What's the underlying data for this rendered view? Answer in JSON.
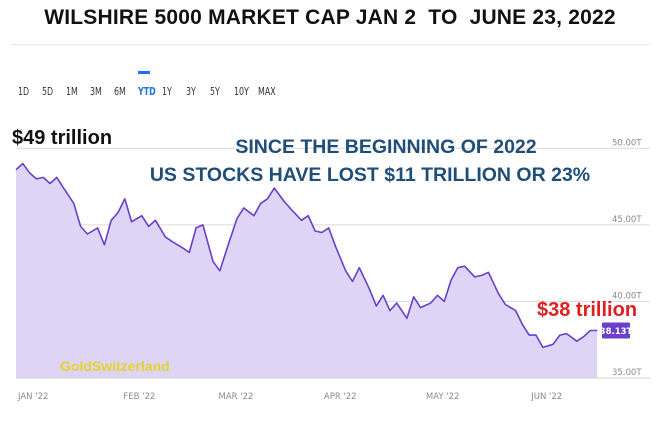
{
  "title": "WILSHIRE 5000 MARKET CAP JAN 2  TO  JUNE 23, 2022",
  "range_buttons": [
    "1D",
    "5D",
    "1M",
    "3M",
    "6M",
    "YTD",
    "1Y",
    "3Y",
    "5Y",
    "10Y",
    "MAX"
  ],
  "active_range": "YTD",
  "annotations": {
    "start_label": "$49 trillion",
    "end_label": "$38 trillion",
    "headline_line1": "SINCE THE BEGINNING OF 2022",
    "headline_line2": "US STOCKS HAVE LOST $11 TRILLION OR 23%",
    "watermark": "GoldSwitzerland"
  },
  "colors": {
    "line": "#6a3fc9",
    "fill": "#ddd4f6",
    "headline": "#1f4e79",
    "end_label": "#e02020",
    "watermark": "#e6d22a",
    "badge": "#6a3fc9"
  },
  "chart_data": {
    "type": "area",
    "title": "WILSHIRE 5000 MARKET CAP JAN 2  TO  JUNE 23, 2022",
    "x_tick_labels": [
      "JAN '22",
      "FEB '22",
      "MAR '22",
      "APR '22",
      "MAY '22",
      "JUN '22"
    ],
    "y_tick_labels": [
      "50.00T",
      "45.00T",
      "40.00T",
      "35.00T"
    ],
    "ylim": [
      35,
      52.5
    ],
    "y_ticks": [
      50,
      45,
      40,
      35
    ],
    "xlim": [
      0,
      173
    ],
    "x_tick_values": [
      0,
      31,
      59,
      90,
      120,
      151
    ],
    "grid": true,
    "last_value_label": "38.13T",
    "series": [
      {
        "name": "",
        "x": [
          0,
          2,
          4,
          6,
          8,
          10,
          12,
          14,
          17,
          19,
          21,
          24,
          26,
          28,
          30,
          32,
          34,
          37,
          39,
          41,
          44,
          46,
          49,
          51,
          53,
          55,
          58,
          60,
          62,
          65,
          67,
          70,
          72,
          74,
          76,
          79,
          81,
          84,
          86,
          88,
          90,
          92,
          94,
          97,
          99,
          101,
          104,
          106,
          108,
          110,
          112,
          115,
          117,
          119,
          122,
          124,
          126,
          128,
          130,
          132,
          135,
          137,
          139,
          142,
          144,
          147,
          149,
          151,
          153,
          155,
          158,
          160,
          162,
          165,
          167,
          169,
          171
        ],
        "y": [
          48.6,
          49.0,
          48.4,
          48.0,
          48.1,
          47.7,
          48.1,
          47.4,
          46.4,
          44.9,
          44.4,
          44.8,
          43.7,
          45.3,
          45.8,
          46.7,
          45.2,
          45.6,
          44.9,
          45.3,
          44.2,
          43.9,
          43.5,
          43.2,
          44.8,
          45.0,
          42.6,
          42.0,
          43.4,
          45.4,
          46.1,
          45.6,
          46.4,
          46.7,
          47.4,
          46.5,
          46.0,
          45.3,
          45.6,
          44.6,
          44.5,
          44.8,
          43.6,
          42.0,
          41.3,
          42.2,
          40.8,
          39.7,
          40.4,
          39.4,
          39.9,
          38.9,
          40.3,
          39.6,
          39.9,
          40.4,
          40.0,
          41.4,
          42.2,
          42.3,
          41.6,
          41.7,
          41.9,
          40.5,
          39.8,
          39.4,
          38.5,
          37.8,
          37.8,
          37.0,
          37.2,
          37.8,
          37.9,
          37.4,
          37.7,
          38.1,
          38.1
        ]
      }
    ]
  }
}
